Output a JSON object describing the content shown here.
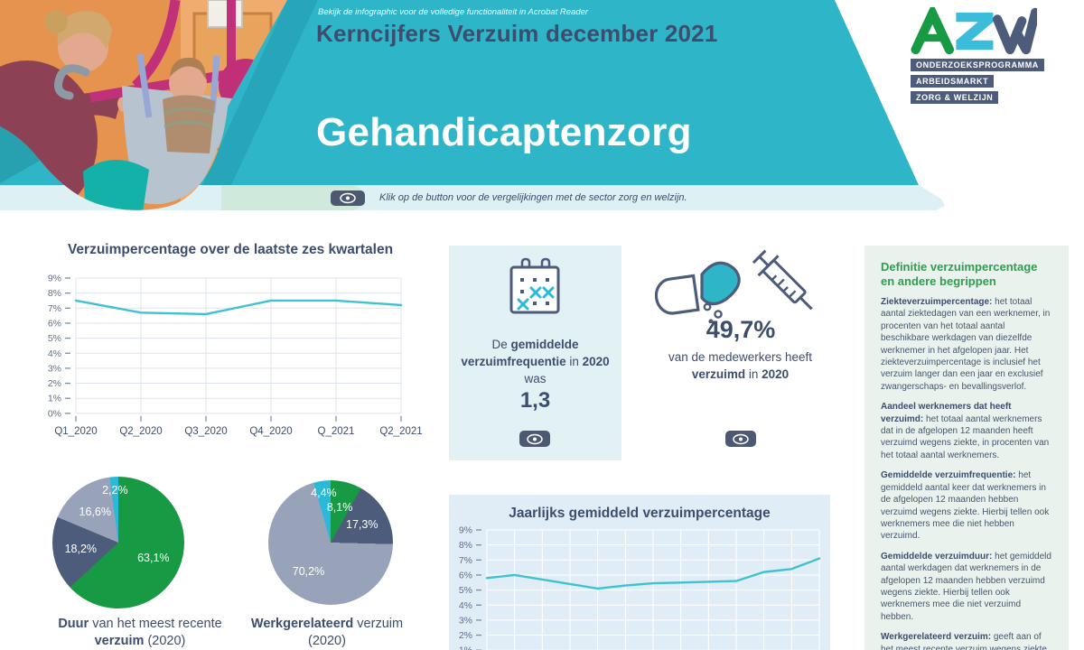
{
  "header": {
    "notice": "Bekijk de infographic voor de volledige functionaliteit in Acrobat Reader",
    "title": "Kerncijfers Verzuim december 2021",
    "sector": "Gehandicaptenzorg",
    "strip_caption": "Klik op de button voor de vergelijkingen met de sector zorg en welzijn.",
    "logo": {
      "text": "AZW",
      "bars": [
        "ONDERZOEKSPROGRAMMA",
        "ARBEIDSMARKT",
        "ZORG & WELZIJN"
      ]
    }
  },
  "icons": {
    "eye": "eye-icon",
    "calendar": "calendar-icon",
    "pill": "pill-icon",
    "syringe": "syringe-icon"
  },
  "colors": {
    "teal_band": "#2fb5c8",
    "navy_text": "#3d4d6e",
    "slate_button": "#4d5872",
    "green": "#189a44",
    "line_cyan": "#3fc1d4",
    "pie_slate": "#4d5c7b",
    "pie_gray": "#98a2b8",
    "pie_cyan": "#2ab9d8",
    "defs_green_heading": "#2f9e50"
  },
  "stats": {
    "frequency": {
      "text_segments": [
        {
          "t": "De "
        },
        {
          "t": "gemiddelde verzuimfrequentie",
          "b": true
        },
        {
          "t": " in "
        },
        {
          "t": "2020",
          "b": true
        },
        {
          "t": " was"
        }
      ],
      "value": "1,3"
    },
    "sick_share": {
      "value": "49,7%",
      "text_segments": [
        {
          "t": "van de medewerkers heeft "
        },
        {
          "t": "verzuimd",
          "b": true
        },
        {
          "t": " in "
        },
        {
          "t": "2020",
          "b": true
        }
      ]
    }
  },
  "definitions": {
    "heading": "Definitie verzuimpercentage en andere begrippen",
    "items": [
      {
        "term": "Ziekteverzuimpercentage:",
        "text": "het totaal aantal ziektedagen van een werknemer, in procenten van het totaal aantal beschikbare werkdagen van diezelfde werknemer in het afgelopen jaar. Het ziekteverzuimpercentage is inclusief het verzuim langer dan een jaar en exclusief zwangerschaps- en bevallingsverlof."
      },
      {
        "term": "Aandeel werknemers dat heeft verzuimd:",
        "text": "het totaal aantal werknemers dat in de afgelopen 12 maanden heeft verzuimd wegens ziekte, in procenten van het totaal aantal werknemers."
      },
      {
        "term": "Gemiddelde verzuimfrequentie:",
        "text": "het gemiddeld aantal keer dat werknemers in de afgelopen 12 maanden hebben verzuimd wegens ziekte. Hierbij tellen ook werknemers mee die niet hebben verzuimd."
      },
      {
        "term": "Gemiddelde verzuimduur:",
        "text": "het gemiddeld aantal werkdagen dat werknemers in de afgelopen 12 maanden hebben verzuimd wegens ziekte. Hierbij tellen ook werknemers mee die niet verzuimd hebben."
      },
      {
        "term": "Werkgerelateerd verzuim:",
        "text": "geeft aan of het meest recente verzuim wegens ziekte"
      }
    ]
  },
  "chart_data": [
    {
      "type": "line",
      "title": "Verzuimpercentage over de laatste zes kwartalen",
      "categories": [
        "Q1_2020",
        "Q2_2020",
        "Q3_2020",
        "Q4_2020",
        "Q_2021",
        "Q2_2021"
      ],
      "values": [
        7.5,
        6.7,
        6.6,
        7.5,
        7.5,
        7.2
      ],
      "ylabel_format": "percent",
      "ylim": [
        0,
        9
      ],
      "ytick_step": 1,
      "grid": true,
      "legend": "none",
      "line_color": "#3fc1d4"
    },
    {
      "type": "line",
      "title": "Jaarlijks gemiddeld verzuimpercentage",
      "x_labels_visible": false,
      "values": [
        5.8,
        6.0,
        5.7,
        5.4,
        5.1,
        5.3,
        5.45,
        5.5,
        5.55,
        5.6,
        6.2,
        6.4,
        7.1
      ],
      "ylabel_format": "percent",
      "ylim": [
        0,
        9
      ],
      "ytick_step": 1,
      "grid": true,
      "legend": "none",
      "line_color": "#3fc1d4",
      "note": "x-axis labels cropped out of view at bottom of page"
    },
    {
      "type": "pie",
      "title": "Duur van het meest recente verzuim (2020)",
      "title_segments": [
        {
          "t": "Duur",
          "b": true
        },
        {
          "t": " van het meest recente "
        },
        {
          "t": "verzuim",
          "b": true
        },
        {
          "t": " (2020)"
        }
      ],
      "slices": [
        {
          "label": "63,1%",
          "value": 63.1,
          "color": "#189a44"
        },
        {
          "label": "18,2%",
          "value": 18.2,
          "color": "#4d5c7b"
        },
        {
          "label": "16,6%",
          "value": 16.6,
          "color": "#98a2b8"
        },
        {
          "label": "2,2%",
          "value": 2.2,
          "color": "#2ab9d8"
        }
      ]
    },
    {
      "type": "pie",
      "title": "Werkgerelateerd verzuim (2020)",
      "title_segments": [
        {
          "t": "Werkgerelateerd",
          "b": true
        },
        {
          "t": " verzuim (2020)"
        }
      ],
      "slices": [
        {
          "label": "8,1%",
          "value": 8.1,
          "color": "#189a44"
        },
        {
          "label": "17,3%",
          "value": 17.3,
          "color": "#4d5c7b"
        },
        {
          "label": "70,2%",
          "value": 70.2,
          "color": "#98a2b8"
        },
        {
          "label": "4,4%",
          "value": 4.4,
          "color": "#2ab9d8"
        }
      ]
    }
  ]
}
